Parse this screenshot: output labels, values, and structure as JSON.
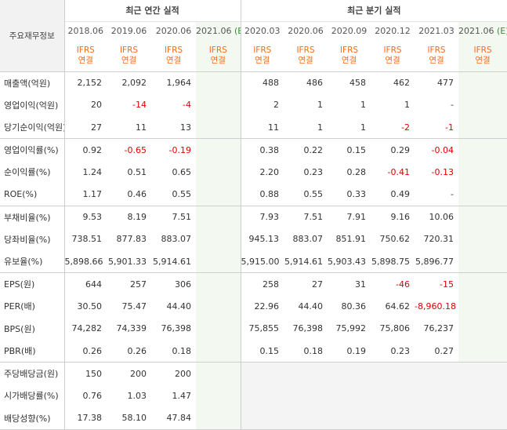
{
  "header": {
    "corner_label": "주요재무정보",
    "annual_title": "최근 연간 실적",
    "quarterly_title": "최근 분기 실적",
    "ifrs_line1": "IFRS",
    "ifrs_line2": "연결",
    "estimate_marker": "(E)",
    "annual_periods": [
      "2018.06",
      "2019.06",
      "2020.06",
      "2021.06"
    ],
    "quarterly_periods": [
      "2020.03",
      "2020.06",
      "2020.09",
      "2020.12",
      "2021.03",
      "2021.06"
    ]
  },
  "colors": {
    "ifrs": "#ff6a1a",
    "negative": "#e00000",
    "estimate_column": "#f3f9f1",
    "empty_cell": "#f4f4f4",
    "estimate_marker": "#3a8a3a"
  },
  "rows": [
    {
      "label": "매출액(억원)",
      "annual": [
        "2,152",
        "2,092",
        "1,964",
        ""
      ],
      "quarterly": [
        "488",
        "486",
        "458",
        "462",
        "477",
        ""
      ]
    },
    {
      "label": "영업이익(억원)",
      "annual": [
        "20",
        "-14",
        "-4",
        ""
      ],
      "quarterly": [
        "2",
        "1",
        "1",
        "1",
        "-",
        ""
      ]
    },
    {
      "label": "당기순이익(억원)",
      "annual": [
        "27",
        "11",
        "13",
        ""
      ],
      "quarterly": [
        "11",
        "1",
        "1",
        "-2",
        "-1",
        ""
      ]
    },
    {
      "label": "영업이익률(%)",
      "annual": [
        "0.92",
        "-0.65",
        "-0.19",
        ""
      ],
      "quarterly": [
        "0.38",
        "0.22",
        "0.15",
        "0.29",
        "-0.04",
        ""
      ]
    },
    {
      "label": "순이익률(%)",
      "annual": [
        "1.24",
        "0.51",
        "0.65",
        ""
      ],
      "quarterly": [
        "2.20",
        "0.23",
        "0.28",
        "-0.41",
        "-0.13",
        ""
      ]
    },
    {
      "label": "ROE(%)",
      "annual": [
        "1.17",
        "0.46",
        "0.55",
        ""
      ],
      "quarterly": [
        "0.88",
        "0.55",
        "0.33",
        "0.49",
        "-",
        ""
      ]
    },
    {
      "label": "부채비율(%)",
      "annual": [
        "9.53",
        "8.19",
        "7.51",
        ""
      ],
      "quarterly": [
        "7.93",
        "7.51",
        "7.91",
        "9.16",
        "10.06",
        ""
      ]
    },
    {
      "label": "당좌비율(%)",
      "annual": [
        "738.51",
        "877.83",
        "883.07",
        ""
      ],
      "quarterly": [
        "945.13",
        "883.07",
        "851.91",
        "750.62",
        "720.31",
        ""
      ]
    },
    {
      "label": "유보율(%)",
      "annual": [
        "5,898.66",
        "5,901.33",
        "5,914.61",
        ""
      ],
      "quarterly": [
        "5,915.00",
        "5,914.61",
        "5,903.43",
        "5,898.75",
        "5,896.77",
        ""
      ]
    },
    {
      "label": "EPS(원)",
      "annual": [
        "644",
        "257",
        "306",
        ""
      ],
      "quarterly": [
        "258",
        "27",
        "31",
        "-46",
        "-15",
        ""
      ]
    },
    {
      "label": "PER(배)",
      "annual": [
        "30.50",
        "75.47",
        "44.40",
        ""
      ],
      "quarterly": [
        "22.96",
        "44.40",
        "80.36",
        "64.62",
        "-8,960.18",
        ""
      ]
    },
    {
      "label": "BPS(원)",
      "annual": [
        "74,282",
        "74,339",
        "76,398",
        ""
      ],
      "quarterly": [
        "75,855",
        "76,398",
        "75,992",
        "75,806",
        "76,237",
        ""
      ]
    },
    {
      "label": "PBR(배)",
      "annual": [
        "0.26",
        "0.26",
        "0.18",
        ""
      ],
      "quarterly": [
        "0.15",
        "0.18",
        "0.19",
        "0.23",
        "0.27",
        ""
      ]
    },
    {
      "label": "주당배당금(원)",
      "annual": [
        "150",
        "200",
        "200",
        ""
      ],
      "quarterly": [
        "",
        "",
        "",
        "",
        "",
        ""
      ]
    },
    {
      "label": "시가배당률(%)",
      "annual": [
        "0.76",
        "1.03",
        "1.47",
        ""
      ],
      "quarterly": [
        "",
        "",
        "",
        "",
        "",
        ""
      ]
    },
    {
      "label": "배당성향(%)",
      "annual": [
        "17.38",
        "58.10",
        "47.84",
        ""
      ],
      "quarterly": [
        "",
        "",
        "",
        "",
        "",
        ""
      ]
    }
  ]
}
